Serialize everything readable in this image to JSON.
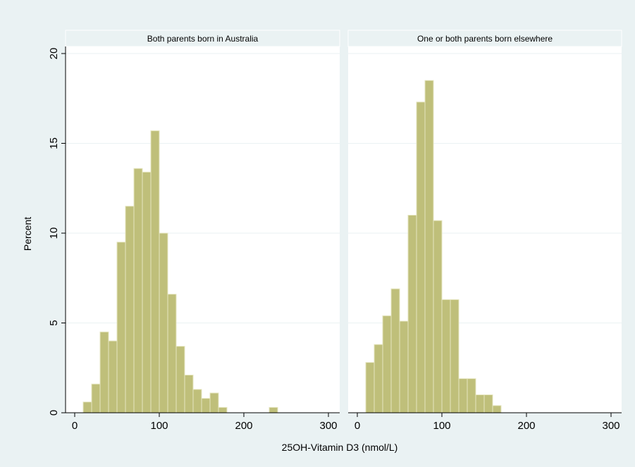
{
  "chart_data": {
    "type": "bar",
    "xlabel": "25OH-Vitamin D3 (nmol/L)",
    "ylabel": "Percent",
    "xlim": [
      0,
      300
    ],
    "ylim": [
      0,
      20
    ],
    "x_ticks": [
      0,
      100,
      200,
      300
    ],
    "y_ticks": [
      0,
      5,
      10,
      15,
      20
    ],
    "bin_width": 10,
    "bar_color": "#bfbf7a",
    "panels": [
      {
        "title": "Both parents born in Australia",
        "bins": [
          {
            "x0": 10,
            "x1": 20,
            "value": 0.6
          },
          {
            "x0": 20,
            "x1": 30,
            "value": 1.6
          },
          {
            "x0": 30,
            "x1": 40,
            "value": 4.5
          },
          {
            "x0": 40,
            "x1": 50,
            "value": 4.0
          },
          {
            "x0": 50,
            "x1": 60,
            "value": 9.5
          },
          {
            "x0": 60,
            "x1": 70,
            "value": 11.5
          },
          {
            "x0": 70,
            "x1": 80,
            "value": 13.6
          },
          {
            "x0": 80,
            "x1": 90,
            "value": 13.4
          },
          {
            "x0": 90,
            "x1": 100,
            "value": 15.7
          },
          {
            "x0": 100,
            "x1": 110,
            "value": 10.0
          },
          {
            "x0": 110,
            "x1": 120,
            "value": 6.6
          },
          {
            "x0": 120,
            "x1": 130,
            "value": 3.7
          },
          {
            "x0": 130,
            "x1": 140,
            "value": 2.1
          },
          {
            "x0": 140,
            "x1": 150,
            "value": 1.3
          },
          {
            "x0": 150,
            "x1": 160,
            "value": 0.8
          },
          {
            "x0": 160,
            "x1": 170,
            "value": 1.1
          },
          {
            "x0": 170,
            "x1": 180,
            "value": 0.3
          },
          {
            "x0": 230,
            "x1": 240,
            "value": 0.3
          }
        ]
      },
      {
        "title": "One or both parents born elsewhere",
        "bins": [
          {
            "x0": 10,
            "x1": 20,
            "value": 2.8
          },
          {
            "x0": 20,
            "x1": 30,
            "value": 3.8
          },
          {
            "x0": 30,
            "x1": 40,
            "value": 5.4
          },
          {
            "x0": 40,
            "x1": 50,
            "value": 6.9
          },
          {
            "x0": 50,
            "x1": 60,
            "value": 5.1
          },
          {
            "x0": 60,
            "x1": 70,
            "value": 11.0
          },
          {
            "x0": 70,
            "x1": 80,
            "value": 17.3
          },
          {
            "x0": 80,
            "x1": 90,
            "value": 18.5
          },
          {
            "x0": 90,
            "x1": 100,
            "value": 10.7
          },
          {
            "x0": 100,
            "x1": 110,
            "value": 6.3
          },
          {
            "x0": 110,
            "x1": 120,
            "value": 6.3
          },
          {
            "x0": 120,
            "x1": 130,
            "value": 1.9
          },
          {
            "x0": 130,
            "x1": 140,
            "value": 1.9
          },
          {
            "x0": 140,
            "x1": 150,
            "value": 1.0
          },
          {
            "x0": 150,
            "x1": 160,
            "value": 1.0
          },
          {
            "x0": 160,
            "x1": 170,
            "value": 0.4
          }
        ]
      }
    ]
  }
}
